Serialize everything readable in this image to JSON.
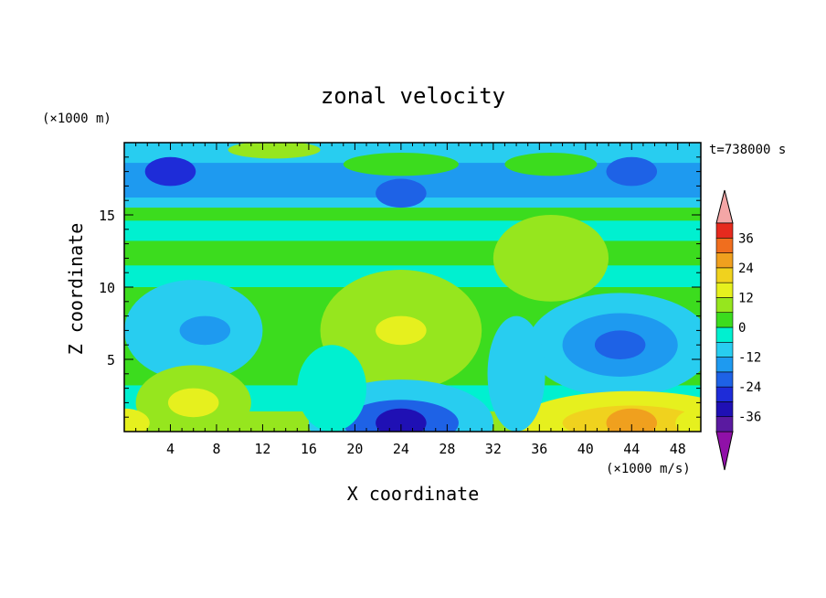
{
  "chart_data": {
    "type": "heatmap",
    "title": "zonal velocity",
    "xlabel": "X coordinate",
    "ylabel": "Z coordinate",
    "x_unit": "(×1000 m/s)",
    "y_unit": "(×1000 m)",
    "time_label": "t=738000 s",
    "xlim": [
      0,
      50
    ],
    "ylim": [
      0,
      20
    ],
    "x_ticks": [
      4,
      8,
      12,
      16,
      20,
      24,
      28,
      32,
      36,
      40,
      44,
      48
    ],
    "y_ticks": [
      5,
      10,
      15
    ],
    "colorbar": {
      "levels": [
        -42,
        -36,
        -30,
        -24,
        -18,
        -12,
        -6,
        0,
        6,
        12,
        18,
        24,
        30,
        36,
        42
      ],
      "tick_labels": [
        "-36",
        "-24",
        "-12",
        "0",
        "12",
        "24",
        "36"
      ],
      "under_color": "#9010a8",
      "over_color": "#f4a6a6",
      "colors": [
        "#5a1aa0",
        "#1f10b4",
        "#1e2cd8",
        "#1e62e6",
        "#1e9af0",
        "#28cdf0",
        "#00f0d0",
        "#3cdc1e",
        "#96e61e",
        "#e6f01e",
        "#f0d21e",
        "#f0a01e",
        "#f06e1e",
        "#e62a1e"
      ]
    },
    "features": [
      {
        "x": 4,
        "z": 18,
        "value": -30
      },
      {
        "x": 24,
        "z": 16.5,
        "value": -24
      },
      {
        "x": 44,
        "z": 18,
        "value": -24
      },
      {
        "x": 7,
        "z": 7,
        "value": -18
      },
      {
        "x": 24,
        "z": 7,
        "value": 12
      },
      {
        "x": 37,
        "z": 12,
        "value": 6
      },
      {
        "x": 43,
        "z": 6,
        "value": -24
      },
      {
        "x": 6,
        "z": 2,
        "value": 12
      },
      {
        "x": 24,
        "z": 0.6,
        "value": -36
      },
      {
        "x": 44,
        "z": 0.6,
        "value": 24
      },
      {
        "x": 0,
        "z": 0.6,
        "value": 12
      },
      {
        "x": 50,
        "z": 0.6,
        "value": 12
      }
    ]
  }
}
